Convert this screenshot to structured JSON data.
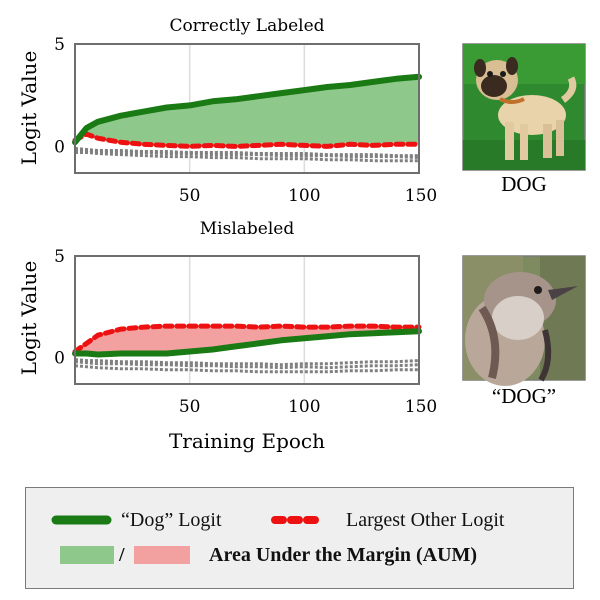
{
  "colors": {
    "dog_logit": "#1a7a14",
    "other_logit": "#ee1111",
    "aum_green": "#8ec98b",
    "aum_red": "#f3a0a0",
    "other_lines": "#808080",
    "spine": "#6e6e6e",
    "grid": "#dddddd",
    "legend_bg": "#efefef"
  },
  "chart_data": [
    {
      "type": "line",
      "title": "Correctly Labeled",
      "ylabel": "Logit Value",
      "xlabel": "",
      "xlim": [
        0,
        150
      ],
      "ylim": [
        -1.3,
        5
      ],
      "xticks": [
        50,
        100,
        150
      ],
      "yticks": [
        0,
        5
      ],
      "grid": "vertical",
      "x": [
        0,
        5,
        10,
        20,
        30,
        40,
        50,
        60,
        70,
        80,
        90,
        100,
        110,
        120,
        130,
        140,
        150
      ],
      "series": [
        {
          "name": "“Dog” Logit",
          "values": [
            0.2,
            0.9,
            1.2,
            1.5,
            1.7,
            1.9,
            2.0,
            2.2,
            2.3,
            2.45,
            2.6,
            2.75,
            2.9,
            3.0,
            3.15,
            3.3,
            3.4
          ]
        },
        {
          "name": "Largest Other Logit",
          "values": [
            0.3,
            0.6,
            0.4,
            0.2,
            0.1,
            0.05,
            0.0,
            0.05,
            0.0,
            0.05,
            0.1,
            0.05,
            0.0,
            0.1,
            0.05,
            0.1,
            0.1
          ]
        }
      ],
      "other_logits": [
        [
          -0.2,
          -0.2,
          -0.25,
          -0.3,
          -0.3,
          -0.35,
          -0.35,
          -0.4,
          -0.4,
          -0.4,
          -0.45,
          -0.45,
          -0.45,
          -0.5,
          -0.5,
          -0.5,
          -0.55
        ],
        [
          -0.3,
          -0.3,
          -0.35,
          -0.4,
          -0.45,
          -0.5,
          -0.5,
          -0.55,
          -0.55,
          -0.6,
          -0.6,
          -0.6,
          -0.65,
          -0.65,
          -0.7,
          -0.7,
          -0.7
        ],
        [
          -0.1,
          -0.15,
          -0.2,
          -0.2,
          -0.25,
          -0.25,
          -0.3,
          -0.3,
          -0.3,
          -0.35,
          -0.35,
          -0.35,
          -0.4,
          -0.4,
          -0.4,
          -0.45,
          -0.45
        ]
      ],
      "image_caption": "DOG",
      "image_subject": "pug-photo"
    },
    {
      "type": "line",
      "title": "Mislabeled",
      "ylabel": "Logit Value",
      "xlabel": "Training Epoch",
      "xlim": [
        0,
        150
      ],
      "ylim": [
        -1.3,
        5
      ],
      "xticks": [
        50,
        100,
        150
      ],
      "yticks": [
        0,
        5
      ],
      "grid": "vertical",
      "x": [
        0,
        5,
        10,
        20,
        30,
        40,
        50,
        60,
        70,
        80,
        90,
        100,
        110,
        120,
        130,
        140,
        150
      ],
      "series": [
        {
          "name": "“Dog” Logit",
          "values": [
            0.2,
            0.2,
            0.15,
            0.2,
            0.2,
            0.2,
            0.3,
            0.4,
            0.55,
            0.7,
            0.85,
            0.95,
            1.05,
            1.15,
            1.2,
            1.25,
            1.3
          ]
        },
        {
          "name": "Largest Other Logit",
          "values": [
            0.3,
            0.7,
            1.1,
            1.4,
            1.5,
            1.55,
            1.55,
            1.55,
            1.55,
            1.5,
            1.55,
            1.5,
            1.5,
            1.55,
            1.55,
            1.5,
            1.5
          ]
        }
      ],
      "other_logits": [
        [
          -0.2,
          -0.25,
          -0.3,
          -0.3,
          -0.35,
          -0.35,
          -0.4,
          -0.4,
          -0.45,
          -0.45,
          -0.5,
          -0.45,
          -0.5,
          -0.45,
          -0.4,
          -0.4,
          -0.35
        ],
        [
          -0.4,
          -0.45,
          -0.5,
          -0.55,
          -0.55,
          -0.6,
          -0.6,
          -0.65,
          -0.65,
          -0.7,
          -0.7,
          -0.7,
          -0.7,
          -0.65,
          -0.65,
          -0.6,
          -0.6
        ],
        [
          -0.1,
          -0.15,
          -0.15,
          -0.2,
          -0.2,
          -0.25,
          -0.25,
          -0.3,
          -0.3,
          -0.3,
          -0.35,
          -0.3,
          -0.3,
          -0.25,
          -0.2,
          -0.2,
          -0.15
        ]
      ],
      "image_caption": "“DOG”",
      "image_subject": "bird-photo"
    }
  ],
  "legend": {
    "dog_label": "“Dog” Logit",
    "other_label": "Largest Other Logit",
    "slash": "/",
    "aum_label": "Area Under the Margin (AUM)"
  }
}
